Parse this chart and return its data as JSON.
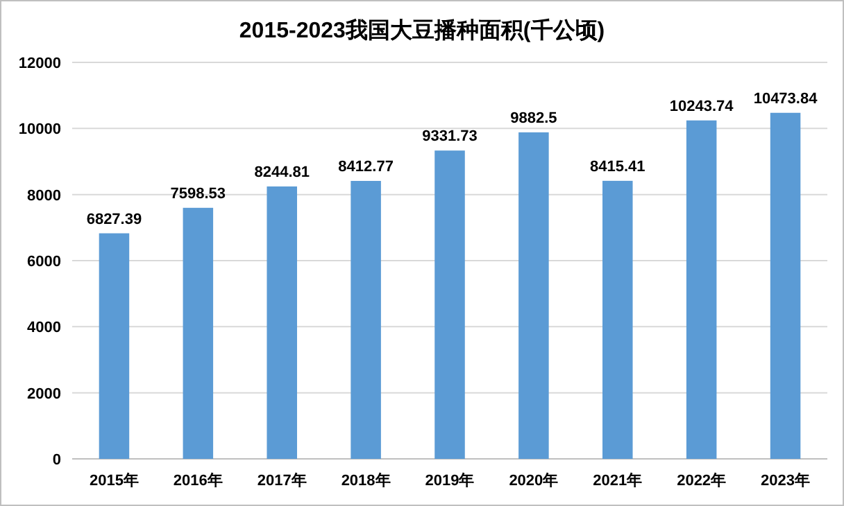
{
  "chart_data": {
    "type": "bar",
    "title": "2015-2023我国大豆播种面积(千公顷)",
    "categories": [
      "2015年",
      "2016年",
      "2017年",
      "2018年",
      "2019年",
      "2020年",
      "2021年",
      "2022年",
      "2023年"
    ],
    "values": [
      6827.39,
      7598.53,
      8244.81,
      8412.77,
      9331.73,
      9882.5,
      8415.41,
      10243.74,
      10473.84
    ],
    "color": "#5b9bd5",
    "ylim": [
      0,
      12000
    ],
    "yticks": [
      0,
      2000,
      4000,
      6000,
      8000,
      10000,
      12000
    ],
    "grid": "y",
    "data_labels": true
  }
}
